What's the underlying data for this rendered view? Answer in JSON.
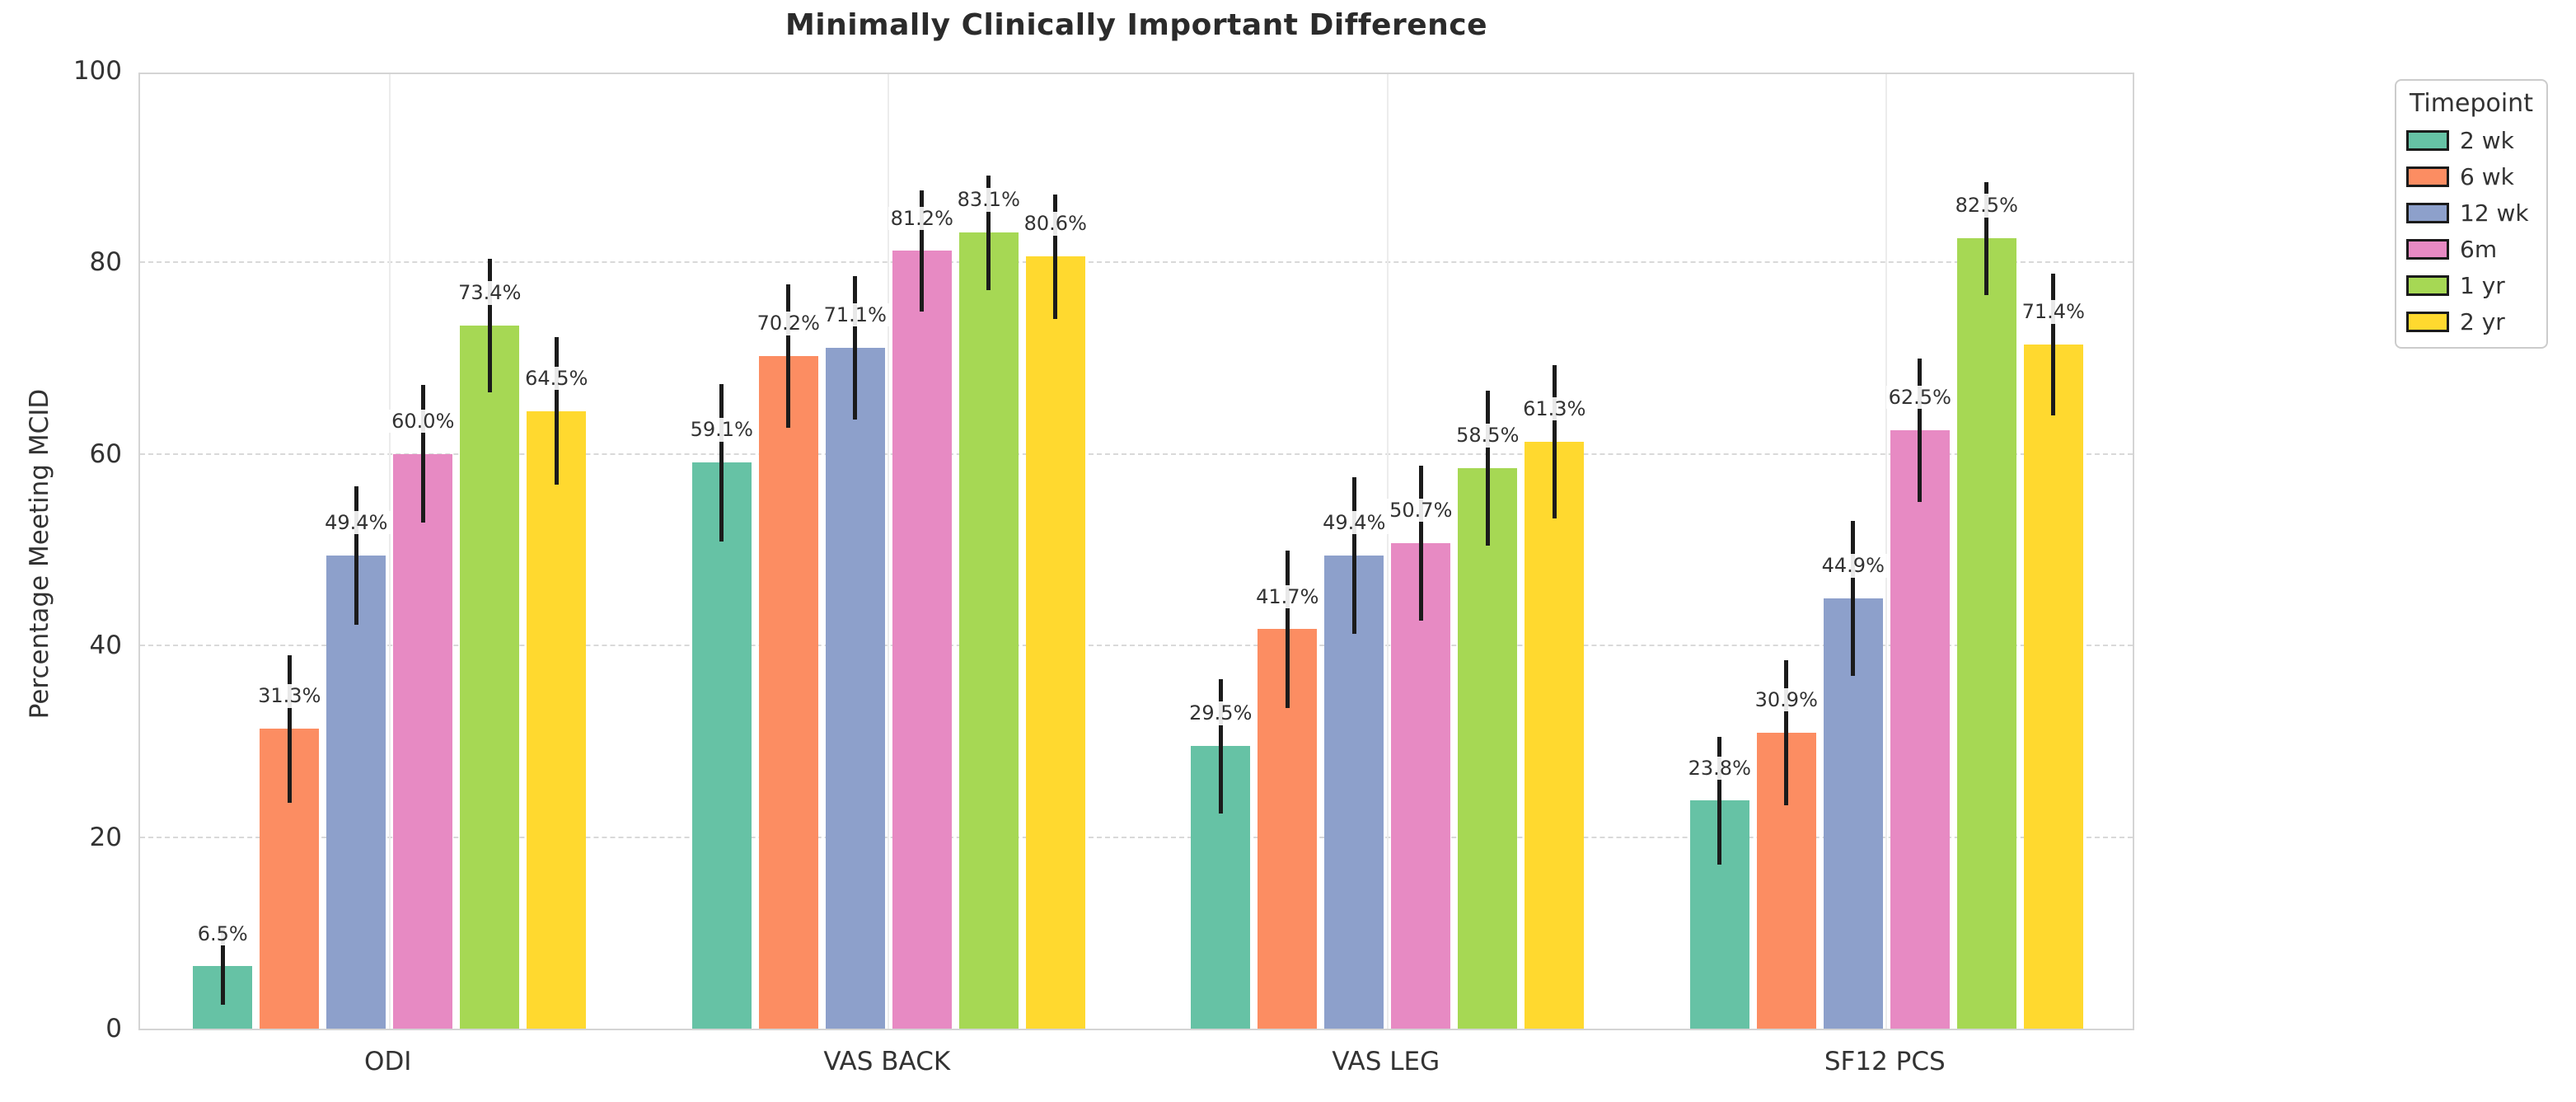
{
  "page": {
    "background": "#ffffff"
  },
  "chart_data": {
    "type": "bar",
    "title": "Minimally Clinically Important Difference",
    "ylabel": "Percentage Meeting MCID",
    "xlabel": "",
    "ylim": [
      0,
      100
    ],
    "yticks": [
      0,
      20,
      40,
      60,
      80,
      100
    ],
    "grid": {
      "horizontal": "dashed",
      "vertical": "solid-light"
    },
    "categories": [
      "ODI",
      "VAS BACK",
      "VAS LEG",
      "SF12 PCS"
    ],
    "value_suffix": "%",
    "error_bars": true,
    "legend": {
      "title": "Timepoint",
      "position": "outside-upper-right"
    },
    "series": [
      {
        "name": "2 wk",
        "color": "#66c2a5",
        "values": [
          6.5,
          59.1,
          29.5,
          23.8
        ],
        "err": [
          4.0,
          8.2,
          7.0,
          6.7
        ]
      },
      {
        "name": "6 wk",
        "color": "#fc8d62",
        "values": [
          31.3,
          70.2,
          41.7,
          30.9
        ],
        "err": [
          7.7,
          7.5,
          8.2,
          7.6
        ]
      },
      {
        "name": "12 wk",
        "color": "#8da0cb",
        "values": [
          49.4,
          71.1,
          49.4,
          44.9
        ],
        "err": [
          7.2,
          7.5,
          8.2,
          8.1
        ]
      },
      {
        "name": "6m",
        "color": "#e78ac3",
        "values": [
          60.0,
          81.2,
          50.7,
          62.5
        ],
        "err": [
          7.2,
          6.3,
          8.1,
          7.5
        ]
      },
      {
        "name": "1 yr",
        "color": "#a6d854",
        "values": [
          73.4,
          83.1,
          58.5,
          82.5
        ],
        "err": [
          7.0,
          6.0,
          8.1,
          5.9
        ]
      },
      {
        "name": "2 yr",
        "color": "#ffd92f",
        "values": [
          64.5,
          80.6,
          61.3,
          71.4
        ],
        "err": [
          7.7,
          6.5,
          8.0,
          7.4
        ]
      }
    ]
  }
}
